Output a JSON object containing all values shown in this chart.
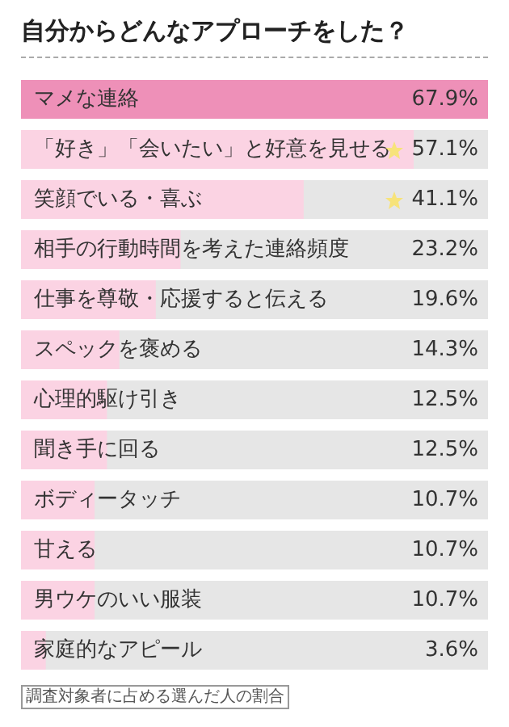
{
  "chart_data": {
    "type": "bar",
    "orientation": "horizontal",
    "xlim": [
      0,
      67.9
    ],
    "tick_labels": "y",
    "title": "自分からどんなアプローチをした？",
    "categories": [
      "マメな連絡",
      "「好き」「会いたい」と好意を見せる",
      "笑顔でいる・喜ぶ",
      "相手の行動時間を考えた連絡頻度",
      "仕事を尊敬・応援すると伝える",
      "スペックを褒める",
      "心理的駆け引き",
      "聞き手に回る",
      "ボディータッチ",
      "甘える",
      "男ウケのいい服装",
      "家庭的なアピール"
    ],
    "values": [
      67.9,
      57.1,
      41.1,
      23.2,
      19.6,
      14.3,
      12.5,
      12.5,
      10.7,
      10.7,
      10.7,
      3.6
    ],
    "colors": [
      "#ee90b8",
      "#fbd3e3",
      "#fbd3e3",
      "#fbd3e3",
      "#fbd3e3",
      "#fbd3e3",
      "#fbd3e3",
      "#fbd3e3",
      "#fbd3e3",
      "#fbd3e3",
      "#fbd3e3",
      "#fbd3e3"
    ],
    "value_labels": [
      "67.9%",
      "57.1%",
      "41.1%",
      "23.2%",
      "19.6%",
      "14.3%",
      "12.5%",
      "12.5%",
      "10.7%",
      "10.7%",
      "10.7%",
      "3.6%"
    ],
    "annotations": [
      "調査対象者に占める選んだ人の割合"
    ]
  }
}
